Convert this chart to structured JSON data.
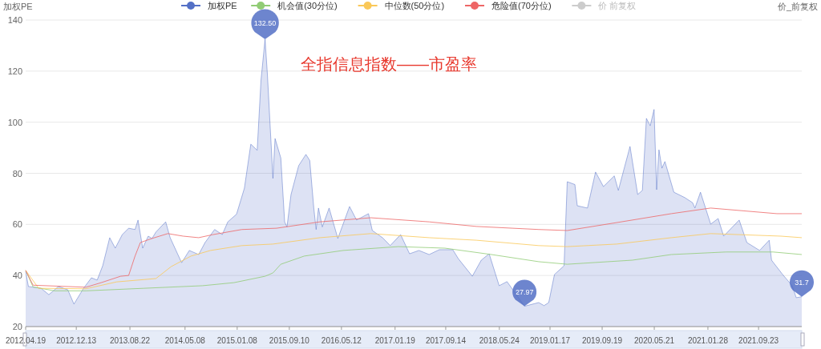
{
  "chart_data": {
    "type": "line",
    "title": "全指信息指数——市盈率",
    "ylabel": "加权PE",
    "y2label": "价_前复权",
    "grid": "y",
    "legend": "top",
    "xlim": [
      "2012-04-19",
      "2022-04-14"
    ],
    "xticks": [
      {
        "value": "2012-04-19",
        "label": "2012.04.19"
      },
      {
        "value": "2012-12-13",
        "label": "2012.12.13"
      },
      {
        "value": "2013-08-22",
        "label": "2013.08.22"
      },
      {
        "value": "2014-05-08",
        "label": "2014.05.08"
      },
      {
        "value": "2015-01-08",
        "label": "2015.01.08"
      },
      {
        "value": "2015-09-10",
        "label": "2015.09.10"
      },
      {
        "value": "2016-05-12",
        "label": "2016.05.12"
      },
      {
        "value": "2017-01-19",
        "label": "2017.01.19"
      },
      {
        "value": "2017-09-14",
        "label": "2017.09.14"
      },
      {
        "value": "2018-05-24",
        "label": "2018.05.24"
      },
      {
        "value": "2019-01-17",
        "label": "2019.01.17"
      },
      {
        "value": "2019-09-19",
        "label": "2019.09.19"
      },
      {
        "value": "2020-05-21",
        "label": "2020.05.21"
      },
      {
        "value": "2021-01-28",
        "label": "2021.01.28"
      },
      {
        "value": "2021-09-23",
        "label": "2021.09.23"
      }
    ],
    "ylim": [
      20,
      140
    ],
    "yticks": [
      20,
      40,
      60,
      80,
      100,
      120,
      140
    ],
    "series": [
      {
        "name": "加权PE",
        "type": "area",
        "color": "#5470c6",
        "x": [
          "2012-04-19",
          "2012-05-02",
          "2012-06-30",
          "2012-08-06",
          "2012-09-20",
          "2012-11-03",
          "2012-12-02",
          "2013-01-16",
          "2013-02-22",
          "2013-03-21",
          "2013-04-16",
          "2013-05-19",
          "2013-06-14",
          "2013-07-17",
          "2013-08-16",
          "2013-09-15",
          "2013-09-29",
          "2013-10-21",
          "2013-11-16",
          "2013-12-04",
          "2013-12-22",
          "2014-02-06",
          "2014-02-27",
          "2014-04-22",
          "2014-05-28",
          "2014-07-11",
          "2014-08-10",
          "2014-09-24",
          "2014-10-30",
          "2014-11-25",
          "2015-01-05",
          "2015-02-11",
          "2015-03-13",
          "2015-04-12",
          "2015-04-30",
          "2015-05-19",
          "2015-05-30",
          "2015-06-25",
          "2015-07-05",
          "2015-08-01",
          "2015-08-19",
          "2015-08-30",
          "2015-09-18",
          "2015-10-24",
          "2015-11-27",
          "2015-12-15",
          "2016-01-03",
          "2016-01-14",
          "2016-01-25",
          "2016-02-12",
          "2016-03-15",
          "2016-04-25",
          "2016-06-19",
          "2016-07-22",
          "2016-09-16",
          "2016-10-04",
          "2016-11-21",
          "2016-12-27",
          "2017-02-14",
          "2017-03-28",
          "2017-05-11",
          "2017-06-28",
          "2017-08-15",
          "2017-10-17",
          "2017-11-12",
          "2018-01-17",
          "2018-02-28",
          "2018-04-06",
          "2018-05-23",
          "2018-06-29",
          "2018-08-17",
          "2018-09-19",
          "2018-11-25",
          "2018-12-20",
          "2019-01-11",
          "2019-02-07",
          "2019-03-24",
          "2019-04-08",
          "2019-05-14",
          "2019-05-25",
          "2019-07-12",
          "2019-08-19",
          "2019-09-25",
          "2019-11-15",
          "2019-12-04",
          "2020-01-28",
          "2020-03-04",
          "2020-03-26",
          "2020-04-14",
          "2020-05-02",
          "2020-05-20",
          "2020-06-01",
          "2020-06-12",
          "2020-06-26",
          "2020-07-10",
          "2020-08-21",
          "2020-10-11",
          "2020-11-17",
          "2020-11-28",
          "2020-12-24",
          "2021-02-10",
          "2021-03-17",
          "2021-04-12",
          "2021-06-24",
          "2021-07-30",
          "2021-09-28",
          "2021-11-12",
          "2021-11-23",
          "2022-01-14",
          "2022-02-28",
          "2022-03-19",
          "2022-04-14"
        ],
        "values": [
          41.5,
          35.7,
          35,
          32.5,
          35.7,
          34.4,
          28.8,
          35,
          39.1,
          38.2,
          43.8,
          54.8,
          50.7,
          56,
          58.5,
          58,
          61.7,
          50.7,
          55.4,
          54.5,
          57,
          61,
          54.8,
          45,
          49.8,
          48.2,
          52.9,
          58,
          56,
          61,
          64,
          74.2,
          91.4,
          89,
          116.5,
          132.5,
          118.7,
          78,
          93.6,
          86,
          61,
          59,
          71.7,
          83,
          87.4,
          85,
          66.4,
          58,
          66.4,
          59,
          66.4,
          54.5,
          67,
          61.7,
          64.2,
          57.6,
          54.8,
          51.7,
          56,
          48.5,
          49.8,
          48.2,
          50.1,
          50.1,
          46.6,
          39.7,
          46,
          48.5,
          36,
          37.6,
          31.9,
          27.97,
          29.4,
          28.2,
          29.4,
          40.4,
          43.8,
          76.7,
          75.6,
          67.3,
          66.4,
          80.5,
          74.8,
          79,
          73.3,
          90.5,
          71.7,
          73.3,
          101.5,
          98.6,
          105,
          73.6,
          89.2,
          82,
          84.6,
          72.6,
          70.5,
          68.5,
          66.4,
          72.6,
          60.1,
          62.3,
          55.4,
          61.7,
          52.9,
          49.8,
          53.8,
          46,
          40.4,
          36,
          31.3,
          31.7
        ]
      },
      {
        "name": "机会值(30分位)",
        "color": "#91cc75",
        "x": [
          "2012-04-19",
          "2012-05-24",
          "2012-09-02",
          "2013-01-27",
          "2013-10-28",
          "2014-07-29",
          "2014-12-24",
          "2015-05-19",
          "2015-06-25",
          "2015-08-01",
          "2015-11-19",
          "2016-05-20",
          "2017-02-03",
          "2017-09-10",
          "2018-04-17",
          "2018-11-25",
          "2019-04-08",
          "2020-02-08",
          "2020-08-09",
          "2021-04-23",
          "2021-11-30",
          "2022-04-14"
        ],
        "values": [
          42,
          35.5,
          34,
          34,
          35,
          36,
          37.2,
          39.7,
          41,
          44.4,
          47.6,
          49.8,
          51.3,
          50.7,
          48.2,
          45.4,
          44.4,
          46,
          48.2,
          49.2,
          49.2,
          48.2
        ]
      },
      {
        "name": "中位数(50分位)",
        "color": "#fac858",
        "x": [
          "2012-04-19",
          "2012-06-19",
          "2013-01-27",
          "2013-06-21",
          "2013-12-22",
          "2014-03-04",
          "2014-06-05",
          "2014-09-05",
          "2015-01-30",
          "2015-06-25",
          "2016-02-01",
          "2016-09-27",
          "2017-06-28",
          "2018-02-05",
          "2018-11-25",
          "2019-04-08",
          "2019-11-26",
          "2020-08-09",
          "2021-02-10",
          "2022-01-06",
          "2022-04-14"
        ],
        "values": [
          42,
          35,
          34.8,
          37.5,
          38.8,
          43.5,
          47.6,
          49.8,
          51.7,
          52.3,
          54.8,
          56.4,
          54.8,
          53.8,
          51.7,
          51.3,
          52.3,
          54.8,
          56.4,
          55.4,
          54.8
        ]
      },
      {
        "name": "危险值(70分位)",
        "color": "#ee6666",
        "x": [
          "2012-04-19",
          "2012-05-24",
          "2013-01-27",
          "2013-04-09",
          "2013-07-09",
          "2013-08-16",
          "2013-09-15",
          "2013-10-10",
          "2013-12-04",
          "2014-02-16",
          "2014-04-29",
          "2014-07-11",
          "2014-09-16",
          "2015-01-30",
          "2015-07-12",
          "2016-02-01",
          "2016-09-27",
          "2017-06-28",
          "2018-02-05",
          "2018-11-25",
          "2019-04-08",
          "2019-11-26",
          "2020-08-09",
          "2021-02-10",
          "2021-12-18",
          "2022-04-14"
        ],
        "values": [
          42,
          36.2,
          35.4,
          37.2,
          39.7,
          40,
          47.6,
          52.9,
          54.5,
          56.4,
          55.4,
          54.8,
          56,
          58,
          58.5,
          61,
          62.6,
          61,
          59.2,
          58,
          57.6,
          60.7,
          64.2,
          66.4,
          64.2,
          64.2
        ]
      },
      {
        "name": "价 前复权",
        "color": "#cccccc"
      }
    ],
    "annotations": [
      {
        "text": "132.50",
        "x": "2015-05-19",
        "y": 132.5
      },
      {
        "text": "27.97",
        "x": "2018-09-19",
        "y": 27.97
      },
      {
        "text": "31.7",
        "x": "2022-04-14",
        "y": 31.7
      }
    ]
  }
}
